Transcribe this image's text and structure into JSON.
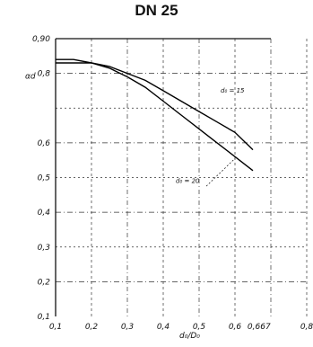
{
  "chart_data": {
    "type": "line",
    "title": "DN 25",
    "xlabel": "d₀/D₀",
    "ylabel": "αd",
    "xlim": [
      0.1,
      0.8
    ],
    "ylim": [
      0.1,
      0.9
    ],
    "x_ticks": [
      "0,1",
      "0,2",
      "0,3",
      "0,4",
      "0,5",
      "0,6",
      "0,667",
      "0,8"
    ],
    "x_tick_values": [
      0.1,
      0.2,
      0.3,
      0.4,
      0.5,
      0.6,
      0.667,
      0.8
    ],
    "y_ticks": [
      "0,1",
      "0,2",
      "0,3",
      "0,4",
      "0,5",
      "0,6",
      "",
      "0,8",
      "0,90"
    ],
    "y_tick_values": [
      0.1,
      0.2,
      0.3,
      0.4,
      0.5,
      0.6,
      0.7,
      0.8,
      0.9
    ],
    "grid": true,
    "series": [
      {
        "name": "d₀ = 15",
        "x": [
          0.1,
          0.15,
          0.2,
          0.25,
          0.3,
          0.35,
          0.4,
          0.45,
          0.5,
          0.55,
          0.6,
          0.65
        ],
        "y": [
          0.84,
          0.84,
          0.83,
          0.82,
          0.8,
          0.78,
          0.75,
          0.72,
          0.69,
          0.66,
          0.63,
          0.58
        ]
      },
      {
        "name": "d₀ = 20",
        "x": [
          0.1,
          0.15,
          0.2,
          0.25,
          0.3,
          0.35,
          0.4,
          0.45,
          0.5,
          0.55,
          0.6,
          0.65
        ],
        "y": [
          0.83,
          0.83,
          0.83,
          0.815,
          0.79,
          0.76,
          0.72,
          0.68,
          0.64,
          0.6,
          0.56,
          0.52
        ]
      }
    ]
  }
}
